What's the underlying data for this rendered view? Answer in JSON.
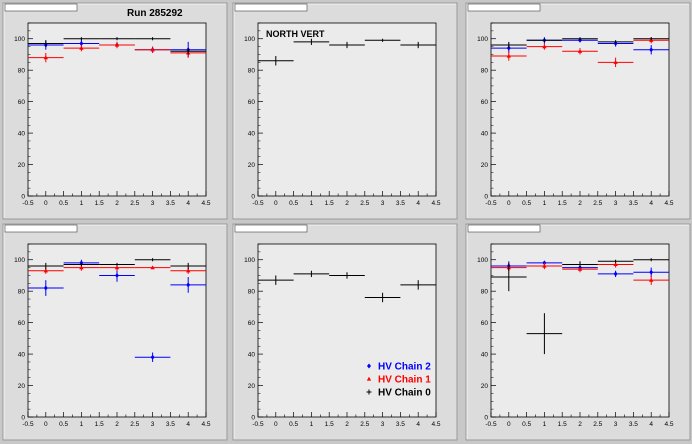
{
  "run_label": "Run 285292",
  "colors": {
    "chain2": "#0000ff",
    "chain1": "#ff0000",
    "chain0": "#000000",
    "pad_bg": "#ebebeb",
    "frame_bg": "#dcdcdc"
  },
  "legend": [
    {
      "label": "HV Chain 2",
      "color": "#0000ff",
      "marker": "diamond"
    },
    {
      "label": "HV Chain 1",
      "color": "#ff0000",
      "marker": "triangle"
    },
    {
      "label": "HV Chain 0",
      "color": "#000000",
      "marker": "cross"
    }
  ],
  "chart_data": [
    {
      "type": "scatter",
      "title": "Run 285292",
      "xlim": [
        -0.5,
        4.5
      ],
      "ylim": [
        0,
        110
      ],
      "x_ticks": [
        "-0.5",
        "0",
        "0.5",
        "1",
        "1.5",
        "2",
        "2.5",
        "3",
        "3.5",
        "4",
        "4.5"
      ],
      "y_ticks": [
        "0",
        "20",
        "40",
        "60",
        "80",
        "100"
      ],
      "grid": false,
      "series": [
        {
          "name": "HV Chain 2",
          "color": "#0000ff",
          "x": [
            0,
            1,
            2,
            3,
            4
          ],
          "y": [
            96,
            97,
            96,
            93,
            93
          ],
          "yerr": [
            3,
            3,
            2,
            2,
            5
          ]
        },
        {
          "name": "HV Chain 1",
          "color": "#ff0000",
          "x": [
            0,
            1,
            2,
            3,
            4
          ],
          "y": [
            88,
            94,
            96,
            93,
            91
          ],
          "yerr": [
            3,
            2,
            2,
            2,
            3
          ]
        },
        {
          "name": "HV Chain 0",
          "color": "#000000",
          "x": [
            0,
            1,
            2,
            3,
            4
          ],
          "y": [
            97,
            100,
            100,
            100,
            92
          ],
          "yerr": [
            2,
            1,
            1,
            1,
            2
          ]
        }
      ]
    },
    {
      "type": "scatter",
      "title": "NORTH VERT",
      "xlim": [
        -0.5,
        4.5
      ],
      "ylim": [
        0,
        110
      ],
      "x_ticks": [
        "-0.5",
        "0",
        "0.5",
        "1",
        "1.5",
        "2",
        "2.5",
        "3",
        "3.5",
        "4",
        "4.5"
      ],
      "y_ticks": [
        "0",
        "20",
        "40",
        "60",
        "80",
        "100"
      ],
      "grid": false,
      "series": [
        {
          "name": "HV Chain 0",
          "color": "#000000",
          "x": [
            0,
            1,
            2,
            3,
            4
          ],
          "y": [
            86,
            98,
            96,
            99,
            96
          ],
          "yerr": [
            3,
            2,
            2,
            1,
            2
          ]
        }
      ]
    },
    {
      "type": "scatter",
      "title": "",
      "xlim": [
        -0.5,
        4.5
      ],
      "ylim": [
        0,
        110
      ],
      "x_ticks": [
        "-0.5",
        "0",
        "0.5",
        "1",
        "1.5",
        "2",
        "2.5",
        "3",
        "3.5",
        "4",
        "4.5"
      ],
      "y_ticks": [
        "0",
        "20",
        "40",
        "60",
        "80",
        "100"
      ],
      "grid": false,
      "series": [
        {
          "name": "HV Chain 2",
          "color": "#0000ff",
          "x": [
            0,
            1,
            2,
            3,
            4
          ],
          "y": [
            94,
            99,
            99,
            97,
            93
          ],
          "yerr": [
            3,
            2,
            1,
            2,
            3
          ]
        },
        {
          "name": "HV Chain 1",
          "color": "#ff0000",
          "x": [
            0,
            1,
            2,
            3,
            4
          ],
          "y": [
            89,
            95,
            92,
            85,
            99
          ],
          "yerr": [
            3,
            2,
            2,
            3,
            2
          ]
        },
        {
          "name": "HV Chain 0",
          "color": "#000000",
          "x": [
            0,
            1,
            2,
            3,
            4
          ],
          "y": [
            96,
            99,
            100,
            98,
            100
          ],
          "yerr": [
            2,
            1,
            1,
            1,
            1
          ]
        }
      ]
    },
    {
      "type": "scatter",
      "title": "",
      "xlim": [
        -0.5,
        4.5
      ],
      "ylim": [
        0,
        110
      ],
      "x_ticks": [
        "-0.5",
        "0",
        "0.5",
        "1",
        "1.5",
        "2",
        "2.5",
        "3",
        "3.5",
        "4",
        "4.5"
      ],
      "y_ticks": [
        "0",
        "20",
        "40",
        "60",
        "80",
        "100"
      ],
      "grid": false,
      "series": [
        {
          "name": "HV Chain 2",
          "color": "#0000ff",
          "x": [
            0,
            1,
            2,
            3,
            4
          ],
          "y": [
            82,
            98,
            90,
            38,
            84
          ],
          "yerr": [
            5,
            2,
            4,
            3,
            5
          ]
        },
        {
          "name": "HV Chain 1",
          "color": "#ff0000",
          "x": [
            0,
            1,
            2,
            3,
            4
          ],
          "y": [
            93,
            95,
            95,
            95,
            93
          ],
          "yerr": [
            2,
            2,
            2,
            1,
            2
          ]
        },
        {
          "name": "HV Chain 0",
          "color": "#000000",
          "x": [
            0,
            1,
            2,
            3,
            4
          ],
          "y": [
            96,
            97,
            97,
            100,
            96
          ],
          "yerr": [
            2,
            1,
            1,
            1,
            2
          ]
        }
      ]
    },
    {
      "type": "scatter",
      "title": "",
      "xlim": [
        -0.5,
        4.5
      ],
      "ylim": [
        0,
        110
      ],
      "x_ticks": [
        "-0.5",
        "0",
        "0.5",
        "1",
        "1.5",
        "2",
        "2.5",
        "3",
        "3.5",
        "4",
        "4.5"
      ],
      "y_ticks": [
        "0",
        "20",
        "40",
        "60",
        "80",
        "100"
      ],
      "grid": false,
      "series": [
        {
          "name": "HV Chain 0",
          "color": "#000000",
          "x": [
            0,
            1,
            2,
            3,
            4
          ],
          "y": [
            87,
            91,
            90,
            76,
            84
          ],
          "yerr": [
            3,
            2,
            2,
            3,
            3
          ]
        }
      ]
    },
    {
      "type": "scatter",
      "title": "",
      "xlim": [
        -0.5,
        4.5
      ],
      "ylim": [
        0,
        110
      ],
      "x_ticks": [
        "-0.5",
        "0",
        "0.5",
        "1",
        "1.5",
        "2",
        "2.5",
        "3",
        "3.5",
        "4",
        "4.5"
      ],
      "y_ticks": [
        "0",
        "20",
        "40",
        "60",
        "80",
        "100"
      ],
      "grid": false,
      "series": [
        {
          "name": "HV Chain 2",
          "color": "#0000ff",
          "x": [
            0,
            1,
            2,
            3,
            4
          ],
          "y": [
            96,
            98,
            95,
            91,
            92
          ],
          "yerr": [
            3,
            1,
            2,
            2,
            3
          ]
        },
        {
          "name": "HV Chain 1",
          "color": "#ff0000",
          "x": [
            0,
            1,
            2,
            3,
            4
          ],
          "y": [
            95,
            96,
            94,
            97,
            87
          ],
          "yerr": [
            2,
            2,
            2,
            2,
            3
          ]
        },
        {
          "name": "HV Chain 0",
          "color": "#000000",
          "x": [
            0,
            1,
            2,
            3,
            4
          ],
          "y": [
            89,
            53,
            97,
            99,
            100
          ],
          "yerr": [
            9,
            13,
            2,
            1,
            1
          ]
        }
      ]
    }
  ]
}
